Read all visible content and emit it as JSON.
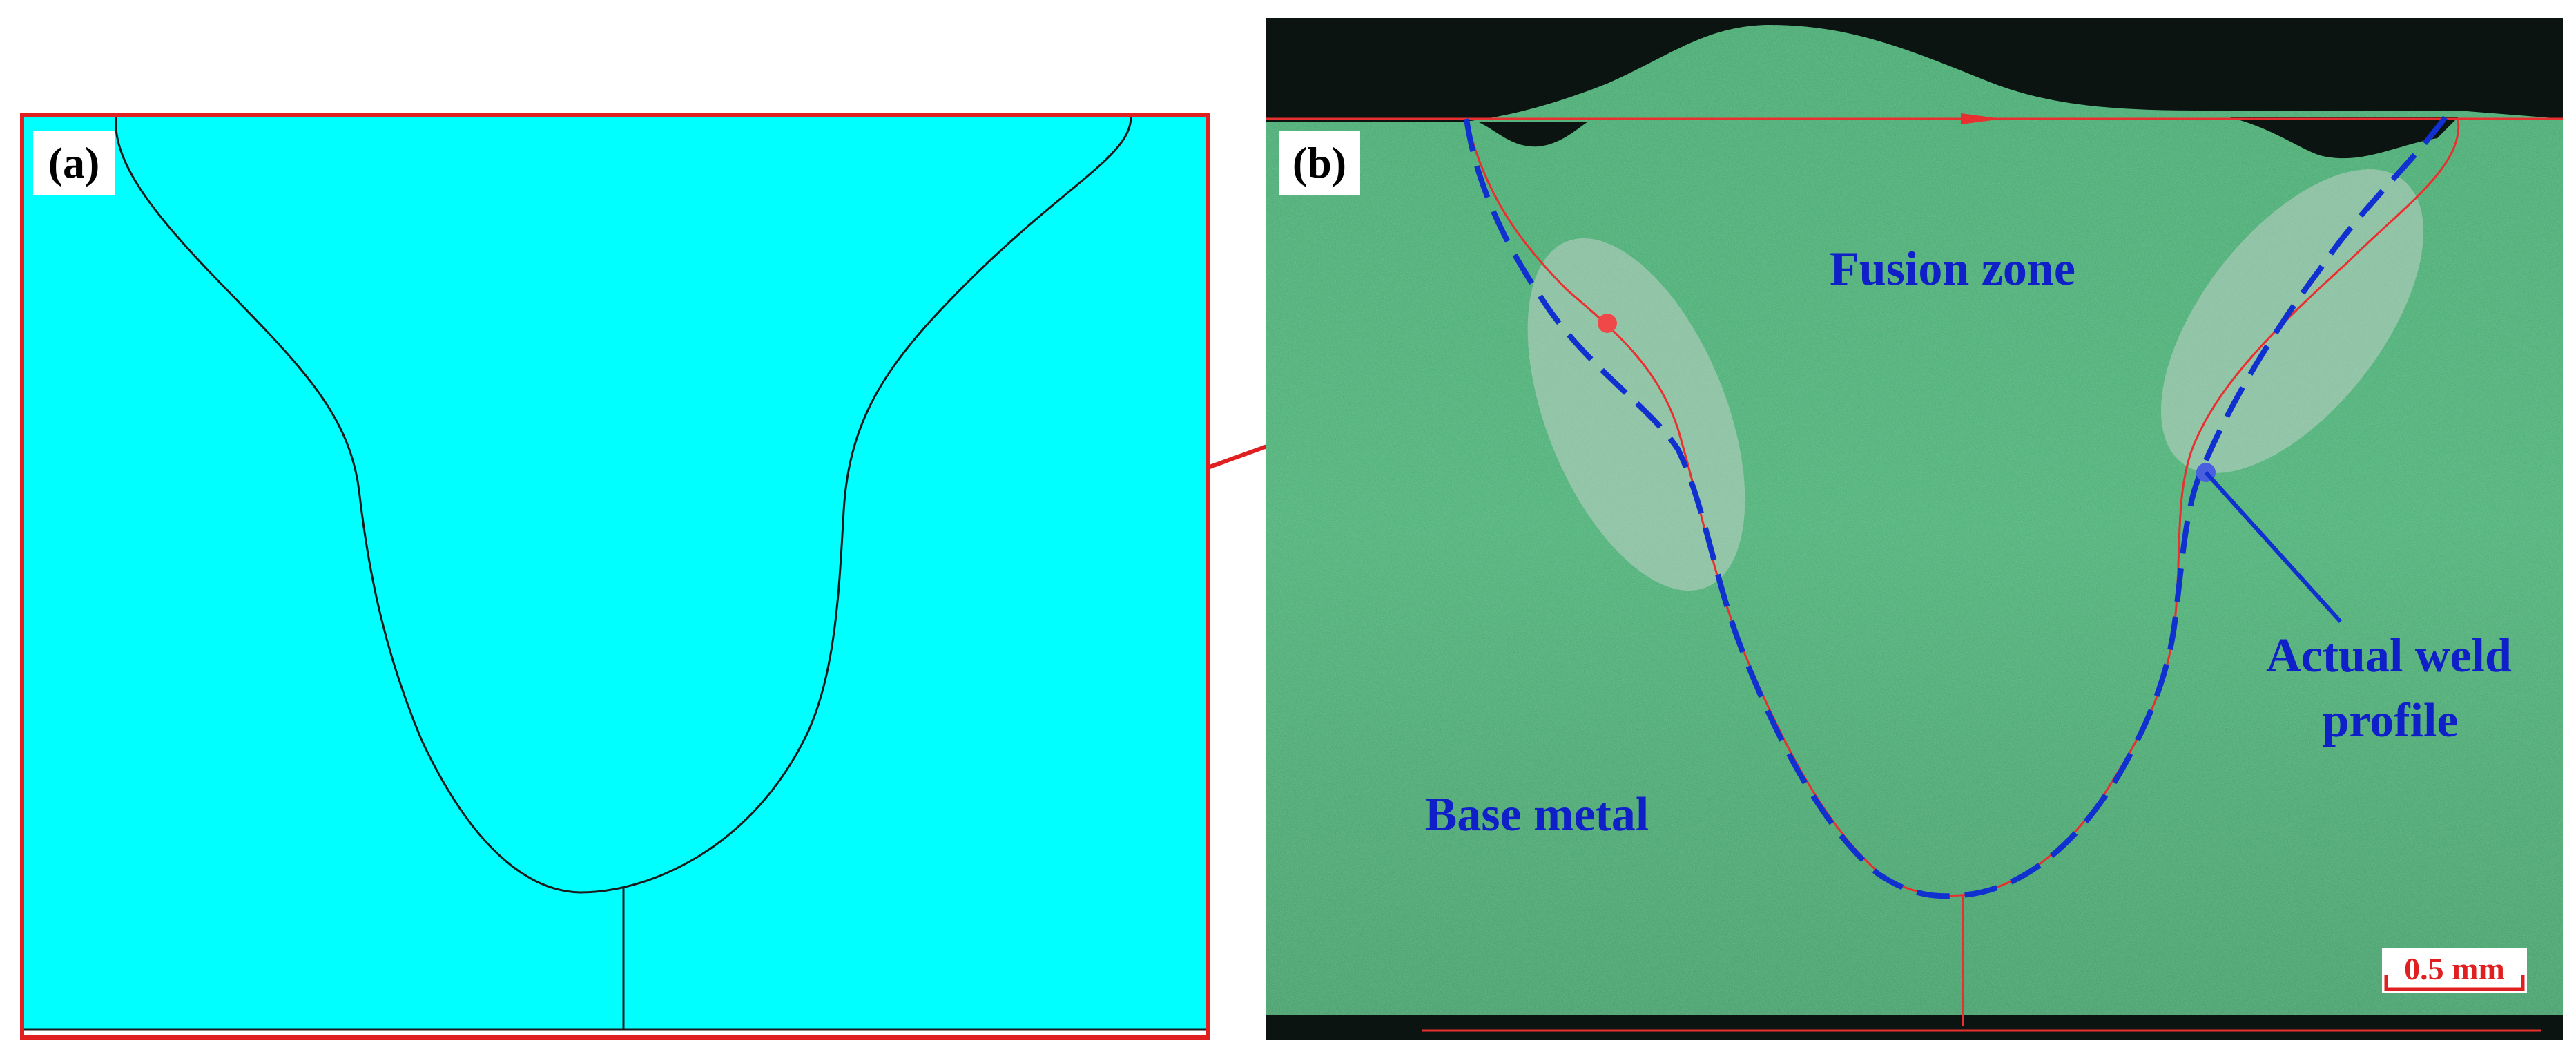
{
  "panel_a": {
    "label": "(a)",
    "fill_color": "#00FFFF",
    "frame_color": "#E02020",
    "outline_color": "#1a1a1a"
  },
  "panel_b": {
    "label": "(b)",
    "fusion_zone_label": "Fusion zone",
    "base_metal_label": "Base metal",
    "actual_profile_label_line1": "Actual weld",
    "actual_profile_label_line2": "profile",
    "scale_bar_label": "0.5 mm",
    "text_color": "#1020C8",
    "simulated_color": "#E83030",
    "actual_color": "#1030D0",
    "background_color": "#3a9e62"
  },
  "connector_color": "#E02020"
}
